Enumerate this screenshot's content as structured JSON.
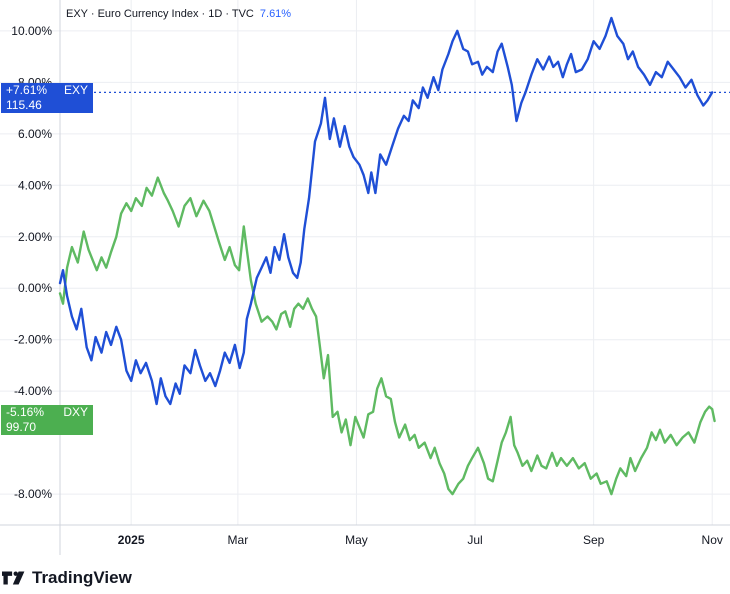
{
  "header": {
    "title": "EXY · Euro Currency Index · 1D · TVC",
    "change": "7.61%"
  },
  "badges": {
    "exy": {
      "change": "+7.61%",
      "ticker": "EXY",
      "price": "115.46",
      "color": "#1f4fd6"
    },
    "dxy": {
      "change": "-5.16%",
      "ticker": "DXY",
      "price": "99.70",
      "color": "#4caf50"
    }
  },
  "brand": {
    "name": "TradingView"
  },
  "chart_data": {
    "type": "line",
    "y_ticks": [
      "10.00%",
      "8.00%",
      "6.00%",
      "4.00%",
      "2.00%",
      "0.00%",
      "-2.00%",
      "-4.00%",
      "-8.00%"
    ],
    "y_tick_values": [
      10,
      8,
      6,
      4,
      2,
      0,
      -2,
      -4,
      -8
    ],
    "ylim": [
      -9.2,
      11.2
    ],
    "x_ticks": [
      "2025",
      "Mar",
      "May",
      "Jul",
      "Sep",
      "Nov"
    ],
    "x_tick_values": [
      2.2,
      4.0,
      6.0,
      8.0,
      10.0,
      12.0
    ],
    "xlim": [
      1.0,
      12.3
    ],
    "grid": true,
    "series": [
      {
        "name": "EXY",
        "color": "#1f4fd6",
        "last_value": 7.61,
        "points": [
          [
            1.0,
            0.2
          ],
          [
            1.05,
            0.7
          ],
          [
            1.12,
            -0.3
          ],
          [
            1.2,
            -1.1
          ],
          [
            1.28,
            -1.6
          ],
          [
            1.36,
            -0.8
          ],
          [
            1.45,
            -2.3
          ],
          [
            1.53,
            -2.8
          ],
          [
            1.6,
            -1.9
          ],
          [
            1.7,
            -2.5
          ],
          [
            1.78,
            -1.7
          ],
          [
            1.86,
            -2.2
          ],
          [
            1.95,
            -1.5
          ],
          [
            2.03,
            -2.0
          ],
          [
            2.12,
            -3.2
          ],
          [
            2.2,
            -3.6
          ],
          [
            2.28,
            -2.8
          ],
          [
            2.36,
            -3.3
          ],
          [
            2.45,
            -2.9
          ],
          [
            2.55,
            -3.6
          ],
          [
            2.63,
            -4.5
          ],
          [
            2.7,
            -3.5
          ],
          [
            2.78,
            -4.2
          ],
          [
            2.86,
            -4.5
          ],
          [
            2.95,
            -3.7
          ],
          [
            3.02,
            -4.1
          ],
          [
            3.1,
            -3.0
          ],
          [
            3.2,
            -3.3
          ],
          [
            3.28,
            -2.4
          ],
          [
            3.36,
            -3.0
          ],
          [
            3.45,
            -3.6
          ],
          [
            3.53,
            -3.3
          ],
          [
            3.62,
            -3.8
          ],
          [
            3.7,
            -3.2
          ],
          [
            3.78,
            -2.5
          ],
          [
            3.86,
            -2.9
          ],
          [
            3.95,
            -2.2
          ],
          [
            4.03,
            -3.1
          ],
          [
            4.1,
            -2.5
          ],
          [
            4.15,
            -1.2
          ],
          [
            4.22,
            -0.6
          ],
          [
            4.32,
            0.4
          ],
          [
            4.4,
            0.8
          ],
          [
            4.48,
            1.2
          ],
          [
            4.55,
            0.6
          ],
          [
            4.62,
            1.6
          ],
          [
            4.7,
            1.1
          ],
          [
            4.78,
            2.1
          ],
          [
            4.85,
            1.2
          ],
          [
            4.93,
            0.6
          ],
          [
            5.0,
            0.4
          ],
          [
            5.06,
            1.0
          ],
          [
            5.12,
            2.3
          ],
          [
            5.2,
            3.5
          ],
          [
            5.3,
            5.7
          ],
          [
            5.4,
            6.4
          ],
          [
            5.47,
            7.4
          ],
          [
            5.55,
            5.8
          ],
          [
            5.62,
            6.6
          ],
          [
            5.72,
            5.5
          ],
          [
            5.8,
            6.3
          ],
          [
            5.88,
            5.5
          ],
          [
            5.95,
            5.1
          ],
          [
            6.05,
            4.8
          ],
          [
            6.12,
            4.4
          ],
          [
            6.2,
            3.7
          ],
          [
            6.25,
            4.5
          ],
          [
            6.32,
            3.7
          ],
          [
            6.4,
            5.2
          ],
          [
            6.5,
            4.8
          ],
          [
            6.6,
            5.5
          ],
          [
            6.7,
            6.2
          ],
          [
            6.8,
            6.7
          ],
          [
            6.88,
            6.5
          ],
          [
            6.95,
            7.3
          ],
          [
            7.05,
            7.0
          ],
          [
            7.12,
            7.8
          ],
          [
            7.2,
            7.4
          ],
          [
            7.3,
            8.2
          ],
          [
            7.38,
            7.7
          ],
          [
            7.45,
            8.5
          ],
          [
            7.55,
            9.1
          ],
          [
            7.62,
            9.6
          ],
          [
            7.7,
            10.0
          ],
          [
            7.8,
            9.3
          ],
          [
            7.88,
            9.2
          ],
          [
            7.95,
            8.7
          ],
          [
            8.05,
            8.8
          ],
          [
            8.12,
            8.3
          ],
          [
            8.2,
            8.6
          ],
          [
            8.3,
            8.4
          ],
          [
            8.38,
            9.2
          ],
          [
            8.45,
            9.5
          ],
          [
            8.55,
            8.6
          ],
          [
            8.62,
            7.9
          ],
          [
            8.7,
            6.5
          ],
          [
            8.78,
            7.2
          ],
          [
            8.85,
            7.6
          ],
          [
            8.95,
            8.3
          ],
          [
            9.05,
            8.9
          ],
          [
            9.15,
            8.5
          ],
          [
            9.25,
            9.0
          ],
          [
            9.32,
            8.6
          ],
          [
            9.4,
            8.8
          ],
          [
            9.48,
            8.2
          ],
          [
            9.55,
            8.7
          ],
          [
            9.62,
            9.1
          ],
          [
            9.7,
            8.4
          ],
          [
            9.8,
            8.5
          ],
          [
            9.9,
            8.9
          ],
          [
            10.0,
            9.6
          ],
          [
            10.1,
            9.3
          ],
          [
            10.2,
            9.8
          ],
          [
            10.3,
            10.5
          ],
          [
            10.4,
            9.8
          ],
          [
            10.5,
            9.5
          ],
          [
            10.58,
            8.9
          ],
          [
            10.66,
            9.2
          ],
          [
            10.75,
            8.6
          ],
          [
            10.85,
            8.3
          ],
          [
            10.95,
            7.9
          ],
          [
            11.05,
            8.4
          ],
          [
            11.15,
            8.2
          ],
          [
            11.25,
            8.8
          ],
          [
            11.35,
            8.5
          ],
          [
            11.45,
            8.2
          ],
          [
            11.55,
            7.8
          ],
          [
            11.65,
            8.1
          ],
          [
            11.75,
            7.5
          ],
          [
            11.85,
            7.1
          ],
          [
            11.92,
            7.3
          ],
          [
            12.0,
            7.61
          ]
        ]
      },
      {
        "name": "DXY",
        "color": "#5fba62",
        "last_value": -5.16,
        "points": [
          [
            1.0,
            -0.2
          ],
          [
            1.05,
            -0.6
          ],
          [
            1.12,
            0.8
          ],
          [
            1.2,
            1.6
          ],
          [
            1.3,
            1.0
          ],
          [
            1.4,
            2.2
          ],
          [
            1.48,
            1.5
          ],
          [
            1.55,
            1.1
          ],
          [
            1.62,
            0.7
          ],
          [
            1.7,
            1.2
          ],
          [
            1.78,
            0.8
          ],
          [
            1.86,
            1.4
          ],
          [
            1.95,
            2.0
          ],
          [
            2.03,
            2.9
          ],
          [
            2.12,
            3.3
          ],
          [
            2.2,
            3.0
          ],
          [
            2.28,
            3.5
          ],
          [
            2.38,
            3.2
          ],
          [
            2.46,
            3.9
          ],
          [
            2.55,
            3.6
          ],
          [
            2.65,
            4.3
          ],
          [
            2.75,
            3.7
          ],
          [
            2.82,
            3.4
          ],
          [
            2.9,
            3.0
          ],
          [
            3.0,
            2.4
          ],
          [
            3.1,
            3.2
          ],
          [
            3.2,
            3.5
          ],
          [
            3.3,
            2.8
          ],
          [
            3.42,
            3.4
          ],
          [
            3.52,
            3.0
          ],
          [
            3.6,
            2.4
          ],
          [
            3.68,
            1.8
          ],
          [
            3.78,
            1.1
          ],
          [
            3.86,
            1.6
          ],
          [
            3.95,
            0.9
          ],
          [
            4.02,
            0.7
          ],
          [
            4.1,
            2.4
          ],
          [
            4.15,
            1.5
          ],
          [
            4.22,
            0.3
          ],
          [
            4.3,
            -0.6
          ],
          [
            4.4,
            -1.3
          ],
          [
            4.5,
            -1.1
          ],
          [
            4.58,
            -1.3
          ],
          [
            4.65,
            -1.6
          ],
          [
            4.73,
            -1.0
          ],
          [
            4.8,
            -0.9
          ],
          [
            4.88,
            -1.5
          ],
          [
            4.95,
            -0.8
          ],
          [
            5.02,
            -0.6
          ],
          [
            5.1,
            -0.8
          ],
          [
            5.18,
            -0.4
          ],
          [
            5.25,
            -0.8
          ],
          [
            5.32,
            -1.1
          ],
          [
            5.38,
            -2.2
          ],
          [
            5.45,
            -3.5
          ],
          [
            5.52,
            -2.6
          ],
          [
            5.6,
            -5.0
          ],
          [
            5.68,
            -4.8
          ],
          [
            5.75,
            -5.6
          ],
          [
            5.82,
            -5.1
          ],
          [
            5.9,
            -6.1
          ],
          [
            5.98,
            -5.0
          ],
          [
            6.05,
            -5.4
          ],
          [
            6.12,
            -5.8
          ],
          [
            6.2,
            -4.9
          ],
          [
            6.28,
            -4.8
          ],
          [
            6.35,
            -3.9
          ],
          [
            6.42,
            -3.5
          ],
          [
            6.5,
            -4.2
          ],
          [
            6.58,
            -4.3
          ],
          [
            6.65,
            -5.2
          ],
          [
            6.72,
            -5.8
          ],
          [
            6.82,
            -5.3
          ],
          [
            6.9,
            -5.9
          ],
          [
            6.98,
            -5.7
          ],
          [
            7.05,
            -6.2
          ],
          [
            7.15,
            -6.0
          ],
          [
            7.25,
            -6.6
          ],
          [
            7.32,
            -6.2
          ],
          [
            7.4,
            -6.8
          ],
          [
            7.48,
            -7.2
          ],
          [
            7.55,
            -7.8
          ],
          [
            7.62,
            -8.0
          ],
          [
            7.72,
            -7.6
          ],
          [
            7.8,
            -7.4
          ],
          [
            7.88,
            -6.9
          ],
          [
            7.95,
            -6.6
          ],
          [
            8.05,
            -6.2
          ],
          [
            8.15,
            -6.8
          ],
          [
            8.22,
            -7.4
          ],
          [
            8.3,
            -7.5
          ],
          [
            8.38,
            -6.7
          ],
          [
            8.45,
            -6.0
          ],
          [
            8.52,
            -5.6
          ],
          [
            8.6,
            -5.0
          ],
          [
            8.66,
            -6.1
          ],
          [
            8.72,
            -6.4
          ],
          [
            8.8,
            -6.9
          ],
          [
            8.88,
            -6.7
          ],
          [
            8.95,
            -7.1
          ],
          [
            9.05,
            -6.5
          ],
          [
            9.12,
            -6.9
          ],
          [
            9.2,
            -7.0
          ],
          [
            9.3,
            -6.4
          ],
          [
            9.38,
            -6.9
          ],
          [
            9.45,
            -6.6
          ],
          [
            9.55,
            -6.9
          ],
          [
            9.65,
            -6.6
          ],
          [
            9.75,
            -7.0
          ],
          [
            9.85,
            -6.8
          ],
          [
            9.95,
            -7.4
          ],
          [
            10.05,
            -7.2
          ],
          [
            10.12,
            -7.6
          ],
          [
            10.22,
            -7.5
          ],
          [
            10.3,
            -8.0
          ],
          [
            10.38,
            -7.4
          ],
          [
            10.45,
            -7.0
          ],
          [
            10.55,
            -7.3
          ],
          [
            10.62,
            -6.6
          ],
          [
            10.7,
            -7.1
          ],
          [
            10.8,
            -6.6
          ],
          [
            10.9,
            -6.2
          ],
          [
            10.98,
            -5.6
          ],
          [
            11.05,
            -5.9
          ],
          [
            11.12,
            -5.5
          ],
          [
            11.2,
            -6.0
          ],
          [
            11.3,
            -5.7
          ],
          [
            11.4,
            -6.1
          ],
          [
            11.5,
            -5.8
          ],
          [
            11.6,
            -5.6
          ],
          [
            11.7,
            -6.0
          ],
          [
            11.8,
            -5.2
          ],
          [
            11.88,
            -4.8
          ],
          [
            11.95,
            -4.6
          ],
          [
            12.0,
            -4.7
          ],
          [
            12.04,
            -5.16
          ]
        ]
      }
    ]
  }
}
